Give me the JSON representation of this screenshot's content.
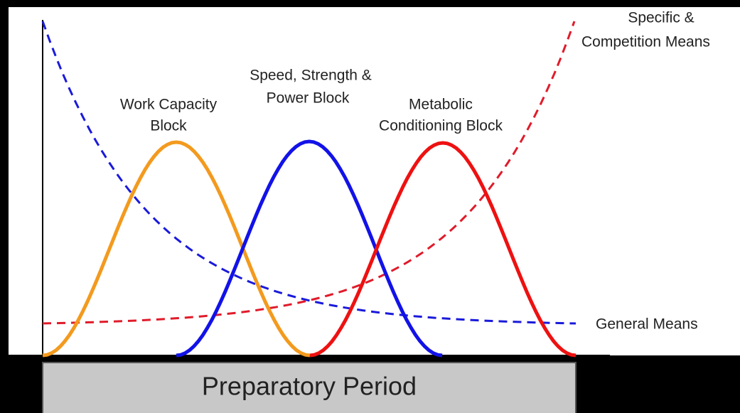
{
  "labels": {
    "work_capacity": [
      "Work Capacity",
      "Block"
    ],
    "speed_strength": [
      "Speed, Strength &",
      "Power Block"
    ],
    "metabolic": [
      "Metabolic",
      "Conditioning Block"
    ],
    "specific": [
      "Specific &",
      "Competition Means"
    ],
    "general": "General Means",
    "period": "Preparatory Period"
  }
}
